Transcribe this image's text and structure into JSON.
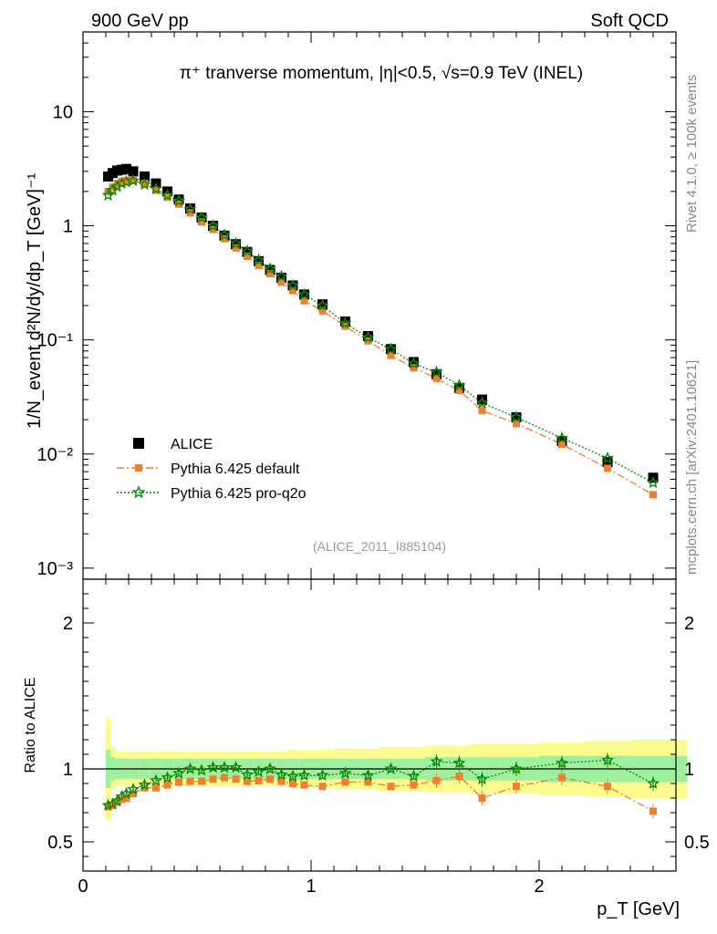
{
  "header": {
    "left": "900 GeV pp",
    "right": "Soft QCD"
  },
  "side": {
    "rivet": "Rivet 4.1.0, ≥ 100k events",
    "mcplots": "mcplots.cern.ch [arXiv:2401.10621]"
  },
  "chart_data": {
    "type": "scatter",
    "title": "π⁺ tranverse momentum, |η|<0.5, √s=0.9 TeV (INEL)",
    "analysis_id": "(ALICE_2011_I885104)",
    "xlabel": "p_T [GeV]",
    "ylabel": "1/N_event d²N/dy/dp_T [GeV]⁻¹",
    "ratio_ylabel": "Ratio to ALICE",
    "xlim": [
      0,
      2.6
    ],
    "ylim": [
      0.0008,
      50
    ],
    "yscale": "log",
    "ratio_ylim": [
      0.3,
      2.3
    ],
    "x_ticks": [
      "0",
      "1",
      "2"
    ],
    "y_ticks": [
      "10⁻³",
      "10⁻²",
      "10⁻¹",
      "1",
      "10"
    ],
    "ratio_ticks": [
      "0.5",
      "1",
      "2"
    ],
    "x": [
      0.11,
      0.13,
      0.15,
      0.17,
      0.19,
      0.22,
      0.27,
      0.32,
      0.37,
      0.42,
      0.47,
      0.52,
      0.57,
      0.62,
      0.67,
      0.72,
      0.77,
      0.82,
      0.87,
      0.92,
      0.97,
      1.05,
      1.15,
      1.25,
      1.35,
      1.45,
      1.55,
      1.65,
      1.75,
      1.9,
      2.1,
      2.3,
      2.5
    ],
    "series": [
      {
        "name": "ALICE",
        "marker": "square",
        "color": "#000000",
        "values": [
          2.7,
          2.9,
          3.05,
          3.1,
          3.15,
          3.0,
          2.7,
          2.35,
          2.0,
          1.7,
          1.42,
          1.18,
          1.0,
          0.82,
          0.69,
          0.59,
          0.49,
          0.41,
          0.35,
          0.3,
          0.25,
          0.205,
          0.145,
          0.108,
          0.083,
          0.064,
          0.05,
          0.038,
          0.03,
          0.021,
          0.013,
          0.0085,
          0.0062
        ]
      },
      {
        "name": "Pythia 6.425 default",
        "marker": "square-small",
        "color": "#f07f30",
        "line": "dashdot",
        "values": [
          2.0,
          2.18,
          2.35,
          2.45,
          2.5,
          2.5,
          2.35,
          2.05,
          1.78,
          1.55,
          1.3,
          1.08,
          0.93,
          0.77,
          0.64,
          0.54,
          0.45,
          0.38,
          0.32,
          0.27,
          0.22,
          0.18,
          0.132,
          0.098,
          0.073,
          0.057,
          0.046,
          0.036,
          0.024,
          0.0185,
          0.0122,
          0.0075,
          0.0044
        ],
        "ratio": [
          0.74,
          0.75,
          0.77,
          0.79,
          0.8,
          0.83,
          0.87,
          0.87,
          0.89,
          0.91,
          0.915,
          0.915,
          0.93,
          0.94,
          0.93,
          0.915,
          0.92,
          0.93,
          0.915,
          0.9,
          0.89,
          0.88,
          0.91,
          0.91,
          0.88,
          0.89,
          0.92,
          0.95,
          0.8,
          0.88,
          0.94,
          0.88,
          0.71
        ]
      },
      {
        "name": "Pythia 6.425 pro-q2o",
        "marker": "star",
        "color": "#0a8a0a",
        "line": "dotted",
        "values": [
          1.85,
          2.05,
          2.2,
          2.35,
          2.42,
          2.48,
          2.3,
          2.1,
          1.85,
          1.65,
          1.4,
          1.18,
          1.0,
          0.83,
          0.7,
          0.6,
          0.5,
          0.42,
          0.36,
          0.3,
          0.25,
          0.2,
          0.14,
          0.105,
          0.083,
          0.062,
          0.052,
          0.04,
          0.028,
          0.021,
          0.0138,
          0.0092,
          0.0056
        ],
        "ratio": [
          0.75,
          0.76,
          0.78,
          0.81,
          0.83,
          0.86,
          0.89,
          0.92,
          0.94,
          0.97,
          1.0,
          0.99,
          1.01,
          1.01,
          1.01,
          0.96,
          0.98,
          1.0,
          0.96,
          0.95,
          0.955,
          0.955,
          0.97,
          0.955,
          1.0,
          0.95,
          1.05,
          1.04,
          0.93,
          1.0,
          1.04,
          1.06,
          0.9
        ]
      }
    ],
    "ratio_band": {
      "inner": [
        0.13,
        0.08,
        0.07,
        0.07,
        0.07,
        0.07,
        0.07,
        0.07,
        0.07,
        0.07,
        0.07,
        0.07,
        0.07,
        0.07,
        0.07,
        0.07,
        0.07,
        0.07,
        0.07,
        0.07,
        0.07,
        0.07,
        0.07,
        0.07,
        0.07,
        0.07,
        0.08,
        0.08,
        0.08,
        0.08,
        0.09,
        0.09,
        0.09
      ],
      "outer": [
        0.35,
        0.15,
        0.12,
        0.12,
        0.12,
        0.12,
        0.12,
        0.12,
        0.12,
        0.12,
        0.12,
        0.12,
        0.12,
        0.12,
        0.12,
        0.12,
        0.12,
        0.12,
        0.12,
        0.13,
        0.13,
        0.13,
        0.14,
        0.14,
        0.15,
        0.15,
        0.16,
        0.16,
        0.17,
        0.17,
        0.18,
        0.19,
        0.2
      ]
    },
    "legend_position": "lower-left"
  }
}
